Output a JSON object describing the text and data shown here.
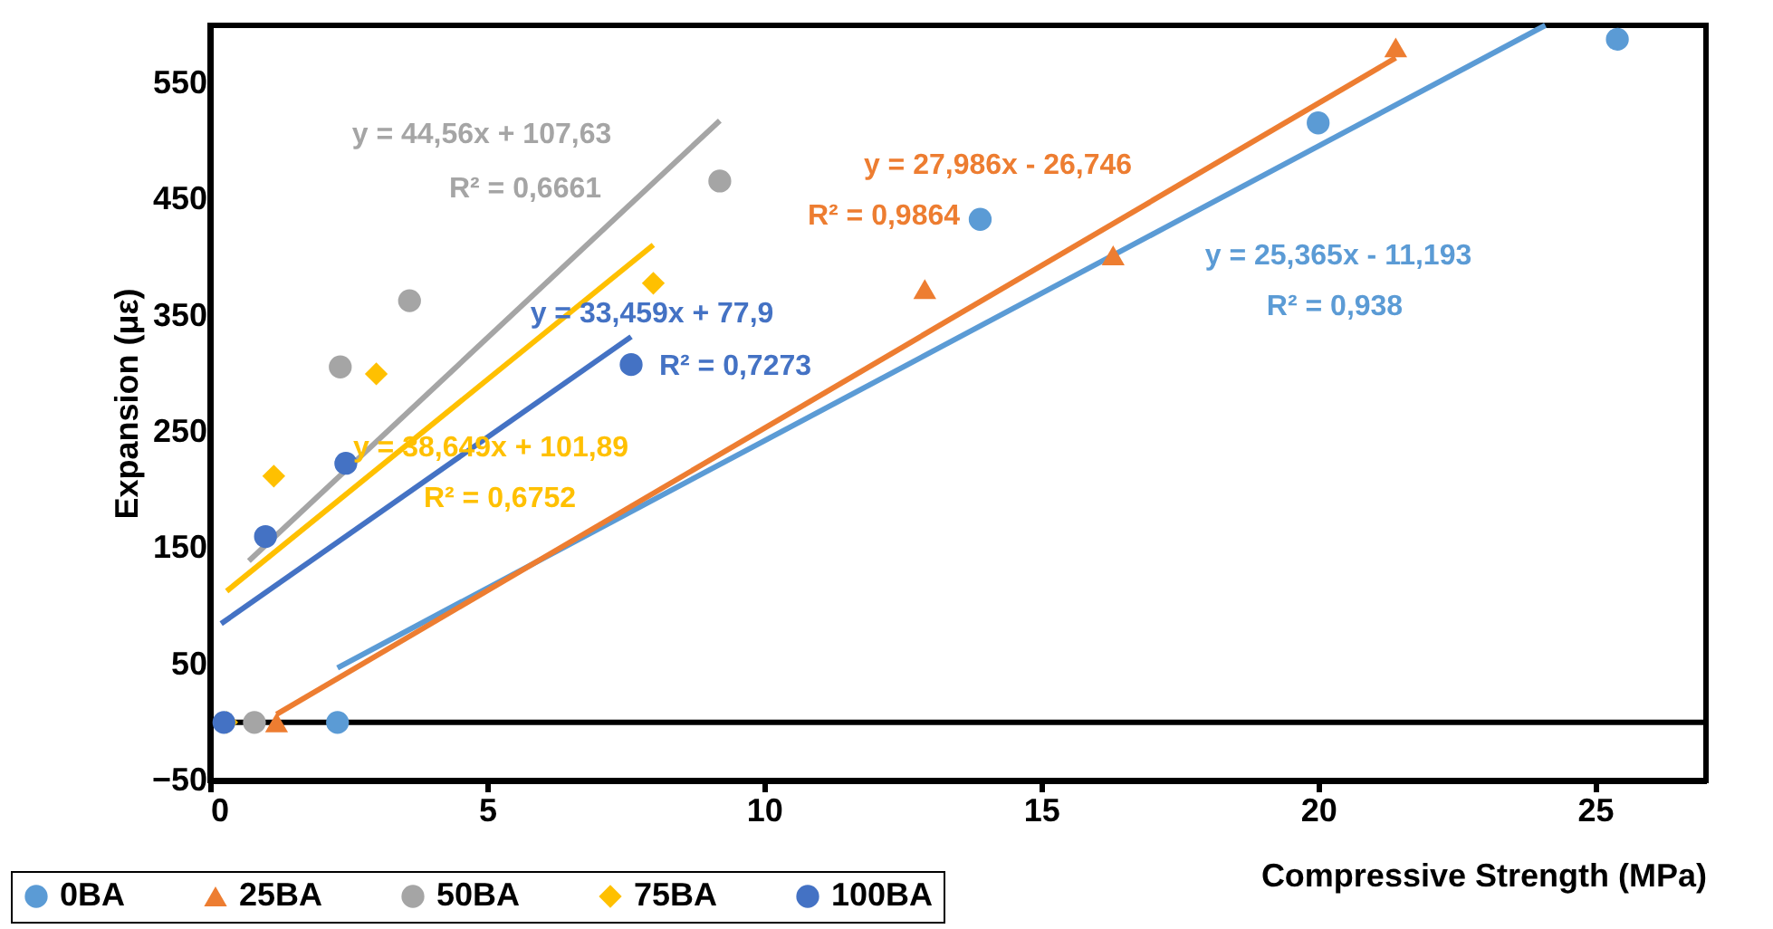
{
  "chart_data": {
    "type": "scatter",
    "xlabel": "Compressive Strength (MPa)",
    "ylabel": "Expansion (με)",
    "xlim": [
      0,
      27
    ],
    "xticks": [
      0,
      5,
      10,
      15,
      20,
      25
    ],
    "ylim": [
      -50,
      600
    ],
    "yticks": [
      -50,
      50,
      150,
      250,
      350,
      450,
      550
    ],
    "legend": "bottom",
    "grid": false,
    "series": [
      {
        "name": "0BA",
        "color": "#5b9bd5",
        "marker": "circle",
        "x": [
          2.3,
          13.9,
          20.0,
          25.4
        ],
        "values": [
          0,
          433,
          516,
          588
        ]
      },
      {
        "name": "25BA",
        "color": "#ed7d31",
        "marker": "triangle",
        "x": [
          1.2,
          12.9,
          16.3,
          21.4
        ],
        "values": [
          0,
          373,
          402,
          581
        ]
      },
      {
        "name": "50BA",
        "color": "#a5a5a5",
        "marker": "circle",
        "x": [
          0.8,
          2.35,
          3.6,
          9.2
        ],
        "values": [
          0,
          306,
          363,
          466
        ]
      },
      {
        "name": "75BA",
        "color": "#ffc000",
        "marker": "diamond",
        "x": [
          0.3,
          1.15,
          3.0,
          8.0
        ],
        "values": [
          0,
          212,
          300,
          378
        ]
      },
      {
        "name": "100BA",
        "color": "#4472c4",
        "marker": "circle",
        "x": [
          0.25,
          1.0,
          2.45,
          7.6
        ],
        "values": [
          0,
          160,
          223,
          308
        ]
      },
      {
        "type": "line",
        "color": "#5b9bd5",
        "x": [
          2.3,
          24.1
        ],
        "values": [
          47,
          600
        ]
      },
      {
        "type": "line",
        "color": "#ed7d31",
        "x": [
          1.2,
          21.4
        ],
        "values": [
          7,
          572
        ]
      },
      {
        "type": "line",
        "color": "#a5a5a5",
        "x": [
          0.7,
          9.2
        ],
        "values": [
          139,
          518
        ]
      },
      {
        "type": "line",
        "color": "#ffc000",
        "x": [
          0.3,
          8.0
        ],
        "values": [
          113,
          411
        ]
      },
      {
        "type": "line",
        "color": "#4472c4",
        "x": [
          0.2,
          7.6
        ],
        "values": [
          85,
          332
        ]
      }
    ],
    "annotations": [
      "y = 25,365x - 11,193",
      "R² = 0,938",
      "y = 27,986x - 26,746",
      "R² = 0,9864",
      "y = 44,56x + 107,63",
      "R² = 0,6661",
      "y = 38,649x + 101,89",
      "R² = 0,6752",
      "y = 33,459x + 77,9",
      "R² = 0,7273"
    ],
    "ref_lines": [
      {
        "axis": "y",
        "value": 0,
        "color": "#000000"
      }
    ]
  }
}
